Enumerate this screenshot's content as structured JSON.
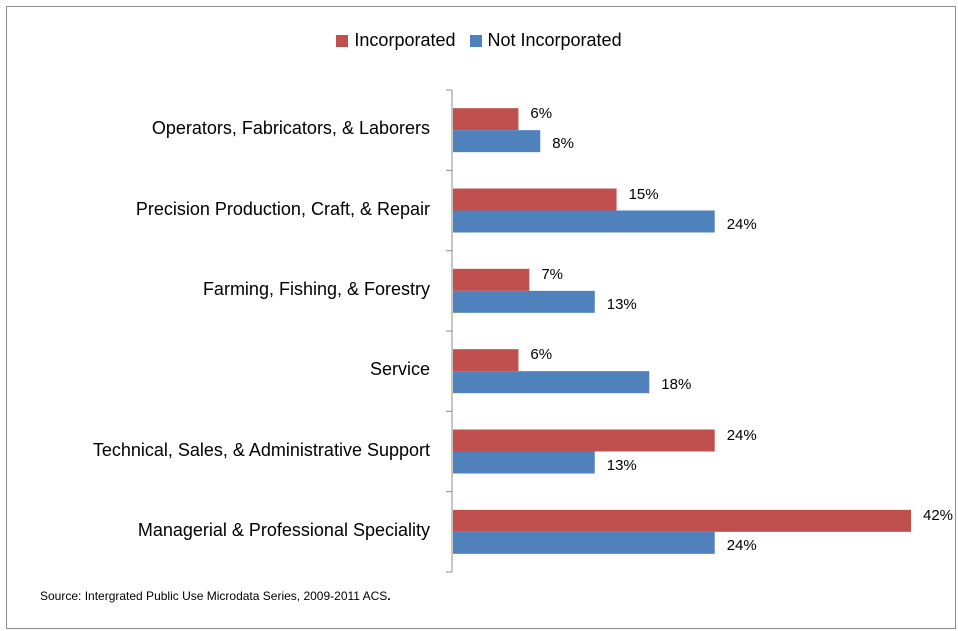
{
  "chart_data": {
    "type": "bar",
    "orientation": "horizontal",
    "categories": [
      "Operators, Fabricators, & Laborers",
      "Precision Production, Craft, & Repair",
      "Farming, Fishing, & Forestry",
      "Service",
      "Technical, Sales, & Administrative Support",
      "Managerial & Professional Speciality"
    ],
    "series": [
      {
        "name": "Incorporated",
        "color": "#c0504d",
        "values": [
          6,
          15,
          7,
          6,
          24,
          42
        ],
        "labels": [
          "6%",
          "15%",
          "7%",
          "6%",
          "24%",
          "42%"
        ]
      },
      {
        "name": "Not Incorporated",
        "color": "#4f81bd",
        "values": [
          8,
          24,
          13,
          18,
          13,
          24
        ],
        "labels": [
          "8%",
          "24%",
          "13%",
          "18%",
          "13%",
          "24%"
        ]
      }
    ],
    "legend_position": "top",
    "grid": false
  },
  "source_note": "Source: Intergrated Public Use Microdata Series, 2009-2011 ACS",
  "source_suffix": "."
}
